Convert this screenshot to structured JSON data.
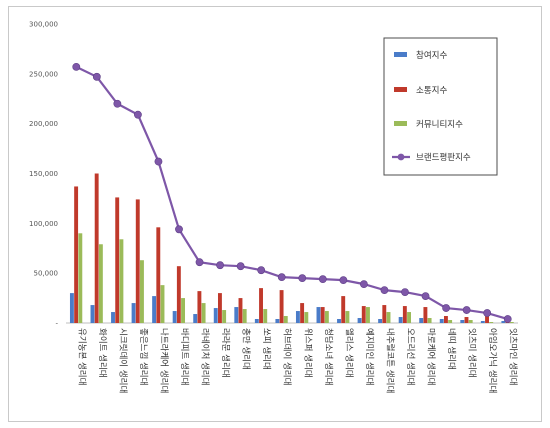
{
  "chart_data": {
    "type": "bar",
    "ylim": [
      0,
      300000
    ],
    "yticks": [
      "-",
      "50,000",
      "100,000",
      "150,000",
      "200,000",
      "250,000",
      "300,000"
    ],
    "grid": false,
    "legend_position": "right",
    "categories": [
      "유기농본 생리대",
      "화이트 생리대",
      "시크릿데이 생리대",
      "좋은느낌 생리대",
      "나트라케어 생리대",
      "바디피트 생리대",
      "라네이처 생리대",
      "라라문 생리대",
      "총만 생리대",
      "쏘피 생리대",
      "허브데이 생리대",
      "위스퍼 생리대",
      "청담소녀 생리대",
      "엘리스 생리대",
      "예지미인 생리대",
      "내추럴코튼 생리대",
      "오드리선 생리대",
      "마로케어 생리대",
      "네띠 생리대",
      "잇츠미 생리대",
      "아임오가닉 생리대",
      "잇츠마인 생리대"
    ],
    "series": [
      {
        "name": "참여지수",
        "type": "bar",
        "color": "#4a7cc9",
        "values": [
          30000,
          18000,
          11000,
          20000,
          27000,
          12000,
          9000,
          15000,
          16000,
          4000,
          4000,
          12000,
          16000,
          4000,
          5000,
          4000,
          6000,
          5000,
          4000,
          3000,
          2000,
          2000
        ]
      },
      {
        "name": "소통지수",
        "type": "bar",
        "color": "#c0392b",
        "values": [
          137000,
          150000,
          126000,
          124000,
          96000,
          57000,
          32000,
          30000,
          25000,
          35000,
          33000,
          20000,
          16000,
          27000,
          17000,
          18000,
          17000,
          16000,
          7000,
          6000,
          8000,
          1000
        ]
      },
      {
        "name": "커뮤니티지수",
        "type": "bar",
        "color": "#9bbb59",
        "values": [
          90000,
          79000,
          84000,
          63000,
          38000,
          25000,
          20000,
          13000,
          14000,
          14000,
          7000,
          11000,
          12000,
          12000,
          16000,
          11000,
          11000,
          5000,
          3000,
          3000,
          1000,
          1000
        ]
      },
      {
        "name": "브랜드평판지수",
        "type": "line",
        "color": "#7e57a8",
        "values": [
          257000,
          247000,
          220000,
          209000,
          162000,
          94000,
          61000,
          58000,
          57000,
          53000,
          46000,
          45000,
          44000,
          43000,
          39000,
          33000,
          31000,
          27000,
          15000,
          13000,
          10000,
          4000
        ]
      }
    ]
  }
}
